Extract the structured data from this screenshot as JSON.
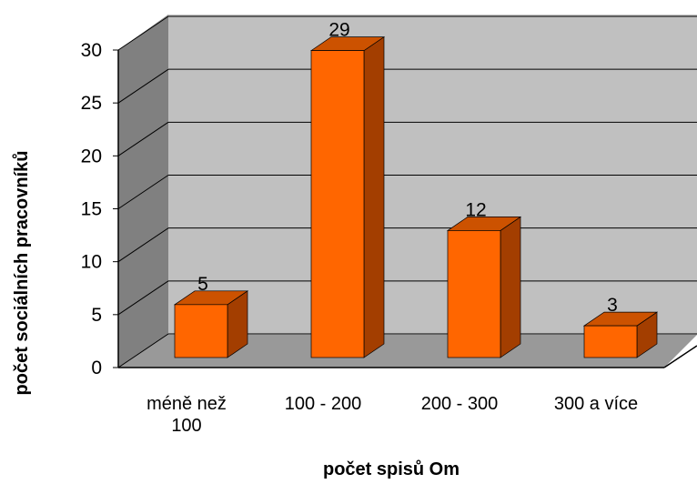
{
  "chart_data": {
    "type": "bar3d",
    "x_label": "počet spisů Om",
    "y_label": "počet sociálních pracovníků",
    "categories": [
      "méně než 100",
      "100 - 200",
      "200 - 300",
      "300 a více"
    ],
    "values": [
      5,
      29,
      12,
      3
    ],
    "color": "#ff6600",
    "ylim": [
      0,
      30
    ],
    "yticks": [
      0,
      5,
      10,
      15,
      20,
      25,
      30
    ],
    "grid": true
  }
}
